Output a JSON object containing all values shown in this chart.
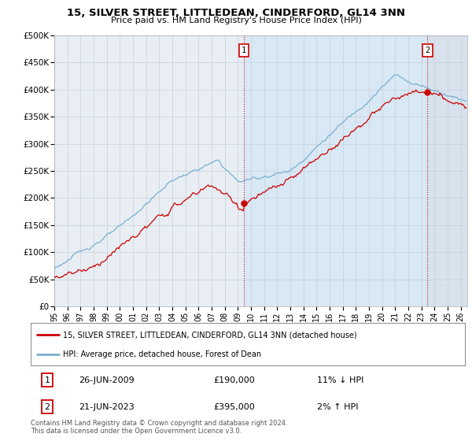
{
  "title": "15, SILVER STREET, LITTLEDEAN, CINDERFORD, GL14 3NN",
  "subtitle": "Price paid vs. HM Land Registry's House Price Index (HPI)",
  "ylim": [
    0,
    500000
  ],
  "yticks": [
    0,
    50000,
    100000,
    150000,
    200000,
    250000,
    300000,
    350000,
    400000,
    450000,
    500000
  ],
  "ytick_labels": [
    "£0",
    "£50K",
    "£100K",
    "£150K",
    "£200K",
    "£250K",
    "£300K",
    "£350K",
    "£400K",
    "£450K",
    "£500K"
  ],
  "xlim_start": 1995.0,
  "xlim_end": 2026.5,
  "sale1_date_num": 2009.48,
  "sale1_price": 190000,
  "sale1_label": "1",
  "sale1_display": "26-JUN-2009",
  "sale1_pct": "11% ↓ HPI",
  "sale2_date_num": 2023.47,
  "sale2_price": 395000,
  "sale2_label": "2",
  "sale2_display": "21-JUN-2023",
  "sale2_pct": "2% ↑ HPI",
  "line_color_sale": "#cc0000",
  "line_color_hpi": "#7ab0d4",
  "shade_color": "#d8e8f4",
  "legend_label_sale": "15, SILVER STREET, LITTLEDEAN, CINDERFORD, GL14 3NN (detached house)",
  "legend_label_hpi": "HPI: Average price, detached house, Forest of Dean",
  "footer": "Contains HM Land Registry data © Crown copyright and database right 2024.\nThis data is licensed under the Open Government Licence v3.0.",
  "bg_color": "#e8eef4",
  "grid_color": "#d0d8e0",
  "annotation_box_color": "#cc0000",
  "hatch_color": "#c8d8e8"
}
